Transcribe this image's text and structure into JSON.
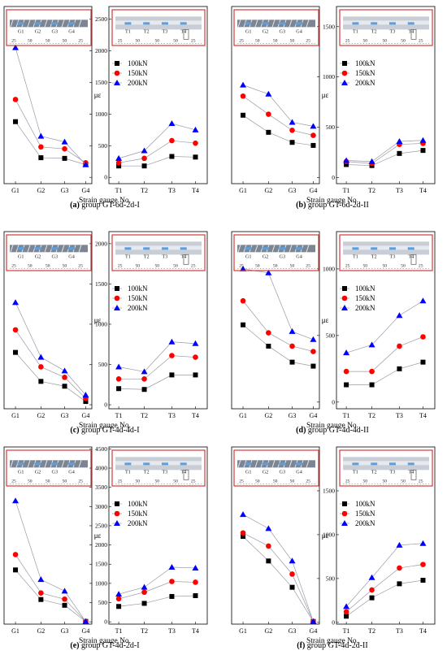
{
  "colors": {
    "s100": "#000000",
    "s150": "#ff0000",
    "s200": "#0000ff",
    "frame": "#d43a3a",
    "line": "#9a9aaa"
  },
  "chart_data": [
    {
      "type": "line",
      "caption_letter": "(a)",
      "caption_text": " group GT-6d-2d-I",
      "xlabel": "Strain gauge No.",
      "ylabel": "με",
      "legend": [
        "100kN",
        "150kN",
        "200kN"
      ],
      "ylim": [
        -100,
        2700
      ],
      "yticks": [
        0,
        500,
        1000,
        1500,
        2000,
        2500
      ],
      "ytick_labels": [
        "0",
        "500",
        "1000",
        "1500",
        "2000",
        "2500"
      ],
      "left_categories": [
        "G1",
        "G2",
        "G3",
        "G4"
      ],
      "right_categories": [
        "T1",
        "T2",
        "T3",
        "T4"
      ],
      "inset_left": {
        "labels": [
          "G1",
          "G2",
          "G3",
          "G4"
        ],
        "dims": [
          "25",
          "50",
          "50",
          "50",
          "25"
        ]
      },
      "inset_right": {
        "labels": [
          "T1",
          "T2",
          "T3",
          "T4"
        ],
        "dims": [
          "25",
          "50",
          "50",
          "50",
          "25"
        ]
      },
      "series": [
        {
          "name": "100kN",
          "left": [
            880,
            310,
            300,
            200
          ],
          "right": [
            180,
            180,
            330,
            320
          ]
        },
        {
          "name": "150kN",
          "left": [
            1230,
            480,
            450,
            230
          ],
          "right": [
            230,
            300,
            580,
            540
          ]
        },
        {
          "name": "200kN",
          "left": [
            2050,
            650,
            560,
            200
          ],
          "right": [
            300,
            420,
            850,
            750
          ]
        }
      ]
    },
    {
      "type": "line",
      "caption_letter": "(b)",
      "caption_text": " group GT-6d-2d-II",
      "xlabel": "Strain gauge No.",
      "ylabel": "με",
      "legend": [
        "100kN",
        "150kN",
        "200kN"
      ],
      "ylim": [
        -60,
        1700
      ],
      "yticks": [
        0,
        500,
        1000,
        1500
      ],
      "ytick_labels": [
        "0",
        "500",
        "1000",
        "1500"
      ],
      "left_categories": [
        "G1",
        "G2",
        "G3",
        "G4"
      ],
      "right_categories": [
        "T1",
        "T2",
        "T3",
        "T4"
      ],
      "inset_left": {
        "labels": [
          "G1",
          "G2",
          "G3",
          "G4"
        ],
        "dims": [
          "25",
          "50",
          "50",
          "50",
          "25"
        ]
      },
      "inset_right": {
        "labels": [
          "T1",
          "T2",
          "T3",
          "T4"
        ],
        "dims": [
          "25",
          "50",
          "50",
          "50",
          "25"
        ]
      },
      "series": [
        {
          "name": "100kN",
          "left": [
            620,
            450,
            350,
            320
          ],
          "right": [
            130,
            120,
            240,
            270
          ]
        },
        {
          "name": "150kN",
          "left": [
            810,
            630,
            470,
            420
          ],
          "right": [
            160,
            140,
            330,
            340
          ]
        },
        {
          "name": "200kN",
          "left": [
            920,
            830,
            550,
            510
          ],
          "right": [
            170,
            160,
            360,
            370
          ]
        }
      ]
    },
    {
      "type": "line",
      "caption_letter": "(c)",
      "caption_text": " group GT-4d-4d-I",
      "xlabel": "Strain gauge No.",
      "ylabel": "με",
      "legend": [
        "100kN",
        "150kN",
        "200kN"
      ],
      "ylim": [
        -50,
        2150
      ],
      "yticks": [
        0,
        500,
        1000,
        1500,
        2000
      ],
      "ytick_labels": [
        "0",
        "500",
        "1000",
        "1500",
        "2000"
      ],
      "left_categories": [
        "G1",
        "G2",
        "G3",
        "G4"
      ],
      "right_categories": [
        "T1",
        "T2",
        "T3",
        "T4"
      ],
      "inset_left": {
        "labels": [
          "G1",
          "G2",
          "G3",
          "G4"
        ],
        "dims": [
          "25",
          "50",
          "50",
          "50",
          "25"
        ]
      },
      "inset_right": {
        "labels": [
          "T1",
          "T2",
          "T3",
          "T4"
        ],
        "dims": [
          "25",
          "50",
          "50",
          "50",
          "25"
        ]
      },
      "series": [
        {
          "name": "100kN",
          "left": [
            650,
            290,
            230,
            40
          ],
          "right": [
            200,
            190,
            370,
            370
          ]
        },
        {
          "name": "150kN",
          "left": [
            930,
            470,
            340,
            80
          ],
          "right": [
            320,
            320,
            610,
            590
          ]
        },
        {
          "name": "200kN",
          "left": [
            1270,
            590,
            420,
            120
          ],
          "right": [
            470,
            410,
            780,
            760
          ]
        }
      ]
    },
    {
      "type": "line",
      "caption_letter": "(d)",
      "caption_text": " group GT-4d-4d-II",
      "xlabel": "Strain gauge No.",
      "ylabel": "με",
      "legend": [
        "100kN",
        "150kN",
        "200kN"
      ],
      "ylim": [
        -50,
        1280
      ],
      "yticks": [
        0,
        500,
        1000
      ],
      "ytick_labels": [
        "0",
        "500",
        "1000"
      ],
      "left_categories": [
        "G1",
        "G2",
        "G3",
        "G4"
      ],
      "right_categories": [
        "T1",
        "T2",
        "T3",
        "T4"
      ],
      "inset_left": {
        "labels": [
          "G1",
          "G2",
          "G3",
          "G4"
        ],
        "dims": [
          "25",
          "50",
          "50",
          "50",
          "25"
        ]
      },
      "inset_right": {
        "labels": [
          "T1",
          "T2",
          "T3",
          "T4"
        ],
        "dims": [
          "25",
          "50",
          "50",
          "50",
          "25"
        ]
      },
      "series": [
        {
          "name": "100kN",
          "left": [
            580,
            420,
            300,
            270
          ],
          "right": [
            130,
            130,
            250,
            300
          ]
        },
        {
          "name": "150kN",
          "left": [
            760,
            520,
            420,
            380
          ],
          "right": [
            230,
            230,
            420,
            490
          ]
        },
        {
          "name": "200kN",
          "left": [
            1000,
            970,
            530,
            470
          ],
          "right": [
            370,
            430,
            650,
            760
          ]
        }
      ]
    },
    {
      "type": "line",
      "caption_letter": "(e)",
      "caption_text": " group GT-4d-2d-I",
      "xlabel": "Strain gauge No.",
      "ylabel": "με",
      "legend": [
        "100kN",
        "150kN",
        "200kN"
      ],
      "ylim": [
        -60,
        4550
      ],
      "yticks": [
        0,
        500,
        1000,
        1500,
        2000,
        2500,
        3000,
        3500,
        4000,
        4500
      ],
      "ytick_labels": [
        "0",
        "500",
        "1000",
        "1500",
        "2000",
        "2500",
        "3000",
        "3500",
        "4000",
        "4500"
      ],
      "left_categories": [
        "G1",
        "G2",
        "G3",
        "G4"
      ],
      "right_categories": [
        "T1",
        "T2",
        "T3",
        "T4"
      ],
      "inset_left": {
        "labels": [
          "G1",
          "G2",
          "G3",
          "G4"
        ],
        "dims": [
          "25",
          "50",
          "50",
          "50",
          "25"
        ]
      },
      "inset_right": {
        "labels": [
          "T1",
          "T2",
          "T3",
          "T4"
        ],
        "dims": [
          "25",
          "50",
          "50",
          "50",
          "25"
        ]
      },
      "series": [
        {
          "name": "100kN",
          "left": [
            1350,
            580,
            430,
            10
          ],
          "right": [
            400,
            480,
            660,
            680
          ]
        },
        {
          "name": "150kN",
          "left": [
            1750,
            750,
            590,
            10
          ],
          "right": [
            600,
            770,
            1050,
            1030
          ]
        },
        {
          "name": "200kN",
          "left": [
            3150,
            1100,
            800,
            10
          ],
          "right": [
            720,
            900,
            1420,
            1400
          ]
        }
      ]
    },
    {
      "type": "line",
      "caption_letter": "(f)",
      "caption_text": " group GT-4d-2d-II",
      "xlabel": "Strain gauge No.",
      "ylabel": "με",
      "legend": [
        "100kN",
        "150kN",
        "200kN"
      ],
      "ylim": [
        -20,
        2000
      ],
      "yticks": [
        0,
        500,
        1000,
        1500
      ],
      "ytick_labels": [
        "0",
        "500",
        "1000",
        "1500"
      ],
      "left_categories": [
        "G1",
        "G2",
        "G3",
        "G4"
      ],
      "right_categories": [
        "T1",
        "T2",
        "T3",
        "T4"
      ],
      "inset_left": {
        "labels": [
          "G1",
          "G2",
          "G3",
          "G4"
        ],
        "dims": [
          "25",
          "50",
          "50",
          "50",
          "25"
        ]
      },
      "inset_right": {
        "labels": [
          "T1",
          "T2",
          "T3",
          "T4"
        ],
        "dims": [
          "25",
          "50",
          "50",
          "50",
          "25"
        ]
      },
      "series": [
        {
          "name": "100kN",
          "left": [
            980,
            700,
            400,
            10
          ],
          "right": [
            70,
            280,
            440,
            480
          ]
        },
        {
          "name": "150kN",
          "left": [
            1020,
            870,
            550,
            10
          ],
          "right": [
            120,
            370,
            620,
            660
          ]
        },
        {
          "name": "200kN",
          "left": [
            1230,
            1070,
            700,
            10
          ],
          "right": [
            180,
            510,
            880,
            900
          ]
        }
      ]
    }
  ]
}
